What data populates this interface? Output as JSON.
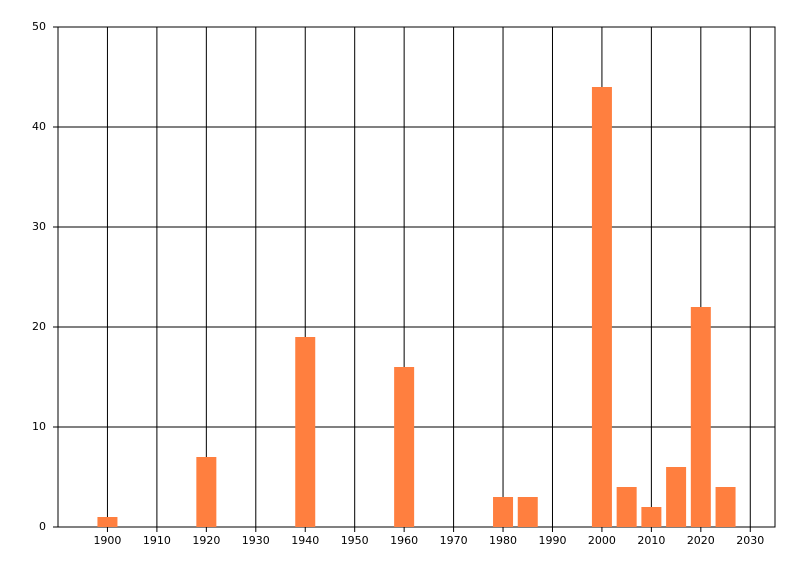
{
  "chart_data": {
    "type": "bar",
    "x": [
      1900,
      1920,
      1940,
      1960,
      1980,
      1985,
      2000,
      2005,
      2010,
      2015,
      2020,
      2025
    ],
    "values": [
      1,
      7,
      19,
      16,
      3,
      3,
      44,
      4,
      2,
      6,
      22,
      4
    ],
    "color": "#ff7f3f",
    "xlim": [
      1890,
      2035
    ],
    "xticks": [
      1900,
      1910,
      1920,
      1930,
      1940,
      1950,
      1960,
      1970,
      1980,
      1990,
      2000,
      2010,
      2020,
      2030
    ],
    "ylim": [
      0,
      50
    ],
    "yticks": [
      0,
      10,
      20,
      30,
      40,
      50
    ],
    "grid": true
  }
}
